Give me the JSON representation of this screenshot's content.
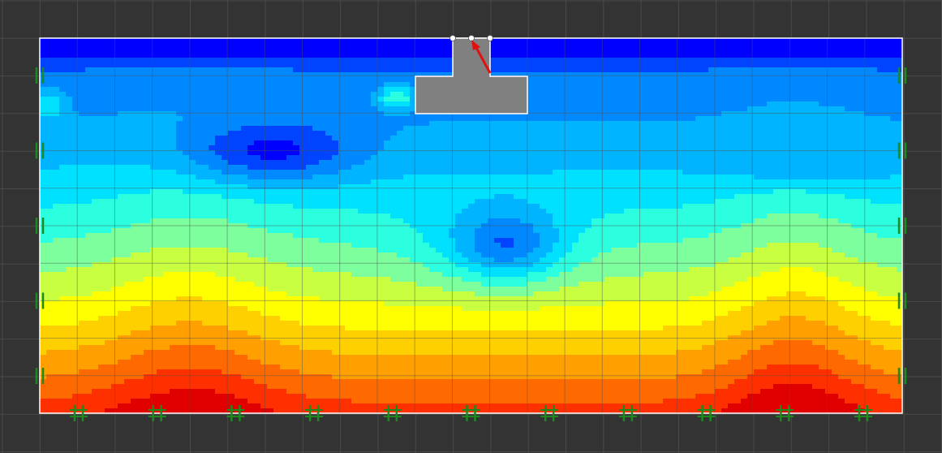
{
  "app": {
    "canvas_background": "#333333",
    "grid_color": "#4a4a4a",
    "domain_border_color": "#ffffff",
    "support_color": "#1c8a1c",
    "footing_color": "#808080",
    "load_arrow_color": "#e01010",
    "node_color": "#ffffff"
  },
  "field": {
    "description_hidden": true,
    "color_scale": [
      "#0000ff",
      "#0044ff",
      "#0088ff",
      "#00b4ff",
      "#00e0ff",
      "#2cffe0",
      "#7cff9c",
      "#c8ff40",
      "#ffff00",
      "#ffd000",
      "#ffa000",
      "#ff6a00",
      "#ff3000",
      "#e00000"
    ],
    "levels_top_to_bottom": [
      0.05,
      0.15,
      0.35,
      0.55,
      0.6,
      0.65,
      0.7,
      0.75,
      0.78,
      0.8,
      0.82,
      0.85,
      0.9,
      0.95
    ]
  },
  "structure": {
    "footing_icon": "rigid-footing",
    "load_icon": "point-load-arrow",
    "support_icon": "pin-roller-support",
    "bottom_supports": 11,
    "side_supports_per_edge": 5
  }
}
